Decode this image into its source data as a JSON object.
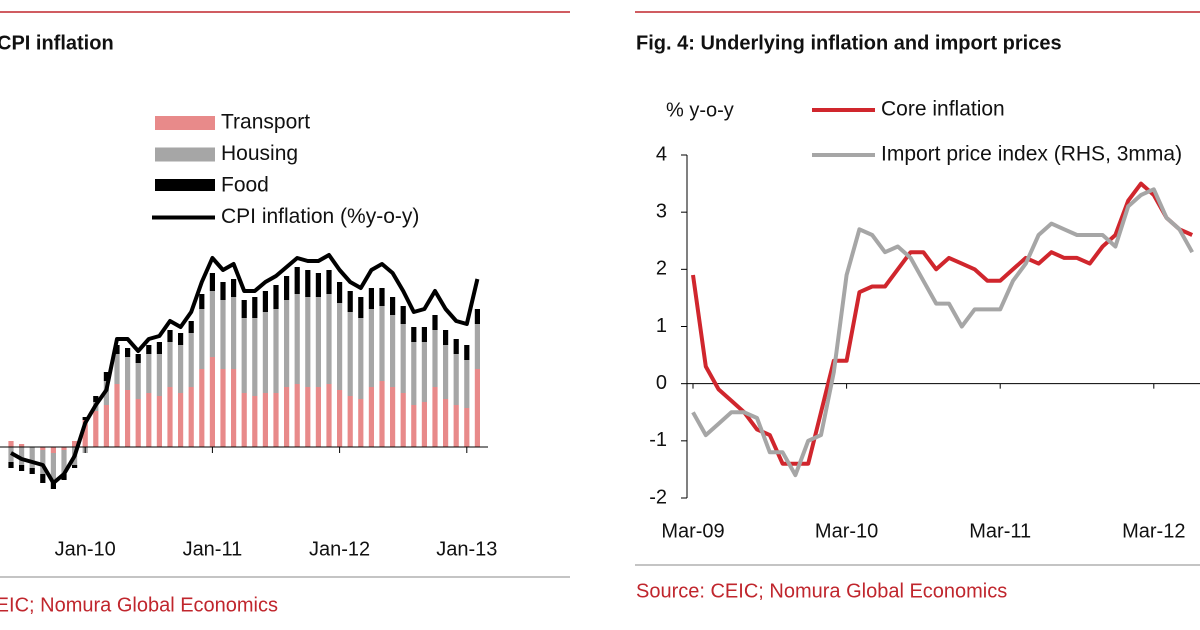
{
  "chart_data": [
    {
      "type": "bar",
      "stacked": true,
      "title": "CPI inflation",
      "source": "Source: CEIC; Nomura Global Economics",
      "categories": [
        null,
        null,
        null,
        null,
        null,
        null,
        null,
        "Jan-10",
        null,
        null,
        null,
        null,
        null,
        null,
        null,
        null,
        null,
        null,
        null,
        "Jan-11",
        null,
        null,
        null,
        null,
        null,
        null,
        null,
        null,
        null,
        null,
        null,
        "Jan-12",
        null,
        null,
        null,
        null,
        null,
        null,
        null,
        null,
        null,
        null,
        null,
        "Jan-13",
        null
      ],
      "ylim": [
        -2.5,
        7
      ],
      "series": [
        {
          "name": "Transport",
          "color": "#e88a8a",
          "values": [
            0.2,
            0.1,
            0.0,
            -0.1,
            -0.2,
            -0.1,
            0.2,
            0.9,
            1.2,
            1.4,
            2.1,
            1.9,
            1.6,
            1.8,
            1.7,
            2.0,
            1.8,
            2.0,
            2.6,
            3.0,
            2.6,
            2.6,
            1.8,
            1.7,
            1.8,
            1.8,
            2.0,
            2.1,
            2.0,
            2.0,
            2.1,
            1.9,
            1.7,
            1.6,
            2.0,
            2.2,
            2.0,
            1.8,
            1.4,
            1.5,
            2.0,
            1.6,
            1.4,
            1.3,
            2.6
          ]
        },
        {
          "name": "Housing",
          "color": "#a6a6a6",
          "values": [
            -0.5,
            -0.6,
            -0.7,
            -0.8,
            -0.9,
            -0.8,
            -0.6,
            -0.2,
            0.3,
            0.8,
            1.0,
            1.1,
            1.2,
            1.3,
            1.4,
            1.5,
            1.6,
            1.8,
            2.0,
            2.2,
            2.3,
            2.4,
            2.5,
            2.6,
            2.7,
            2.8,
            2.9,
            3.0,
            3.0,
            3.0,
            3.0,
            2.9,
            2.8,
            2.7,
            2.6,
            2.5,
            2.4,
            2.3,
            2.1,
            2.0,
            1.9,
            1.8,
            1.7,
            1.6,
            1.5
          ]
        },
        {
          "name": "Food",
          "color": "#000000",
          "values": [
            -0.2,
            -0.2,
            -0.2,
            -0.3,
            -0.3,
            -0.2,
            -0.1,
            0.1,
            0.2,
            0.3,
            0.3,
            0.3,
            0.3,
            0.3,
            0.4,
            0.4,
            0.4,
            0.4,
            0.5,
            0.6,
            0.6,
            0.6,
            0.6,
            0.7,
            0.7,
            0.8,
            0.8,
            0.9,
            0.9,
            0.8,
            0.8,
            0.7,
            0.7,
            0.7,
            0.7,
            0.6,
            0.6,
            0.6,
            0.5,
            0.5,
            0.5,
            0.5,
            0.5,
            0.5,
            0.5
          ]
        },
        {
          "name": "CPI inflation (%y-o-y)",
          "type": "line",
          "color": "#000000",
          "values": [
            -0.2,
            -0.4,
            -0.5,
            -0.6,
            -1.2,
            -0.9,
            -0.3,
            0.8,
            1.4,
            1.9,
            3.6,
            3.6,
            3.2,
            3.6,
            3.7,
            4.2,
            4.0,
            4.5,
            5.5,
            6.3,
            5.9,
            6.1,
            5.2,
            5.2,
            5.5,
            5.7,
            6.0,
            6.3,
            6.2,
            6.2,
            6.4,
            5.9,
            5.5,
            5.3,
            5.9,
            6.1,
            5.8,
            5.2,
            4.5,
            4.6,
            5.2,
            4.6,
            4.2,
            4.1,
            5.6
          ]
        }
      ]
    },
    {
      "type": "line",
      "title": "Fig. 4: Underlying inflation and import prices",
      "y_label": "% y-o-y",
      "source": "Source: CEIC; Nomura Global Economics",
      "categories": [
        "Mar-09",
        null,
        null,
        null,
        null,
        null,
        null,
        null,
        null,
        null,
        null,
        null,
        "Mar-10",
        null,
        null,
        null,
        null,
        null,
        null,
        null,
        null,
        null,
        null,
        null,
        "Mar-11",
        null,
        null,
        null,
        null,
        null,
        null,
        null,
        null,
        null,
        null,
        null,
        "Mar-12",
        null,
        null,
        null
      ],
      "ylim": [
        -2,
        4
      ],
      "yticks": [
        -2,
        -1,
        0,
        1,
        2,
        3,
        4
      ],
      "series": [
        {
          "name": "Core inflation",
          "color": "#d0262d",
          "values": [
            1.9,
            0.3,
            -0.1,
            -0.3,
            -0.5,
            -0.8,
            -0.9,
            -1.4,
            -1.4,
            -1.4,
            -0.5,
            0.4,
            0.4,
            1.6,
            1.7,
            1.7,
            2.0,
            2.3,
            2.3,
            2.0,
            2.2,
            2.1,
            2.0,
            1.8,
            1.8,
            2.0,
            2.2,
            2.1,
            2.3,
            2.2,
            2.2,
            2.1,
            2.4,
            2.6,
            3.2,
            3.5,
            3.3,
            2.9,
            2.7,
            2.6
          ]
        },
        {
          "name": "Import price index (RHS, 3mma)",
          "color": "#a6a6a6",
          "values": [
            -0.5,
            -0.9,
            -0.7,
            -0.5,
            -0.5,
            -0.6,
            -1.2,
            -1.2,
            -1.6,
            -1.0,
            -0.9,
            0.2,
            1.9,
            2.7,
            2.6,
            2.3,
            2.4,
            2.2,
            1.8,
            1.4,
            1.4,
            1.0,
            1.3,
            1.3,
            1.3,
            1.8,
            2.1,
            2.6,
            2.8,
            2.7,
            2.6,
            2.6,
            2.6,
            2.4,
            3.1,
            3.3,
            3.4,
            2.9,
            2.7,
            2.3
          ]
        }
      ]
    }
  ]
}
